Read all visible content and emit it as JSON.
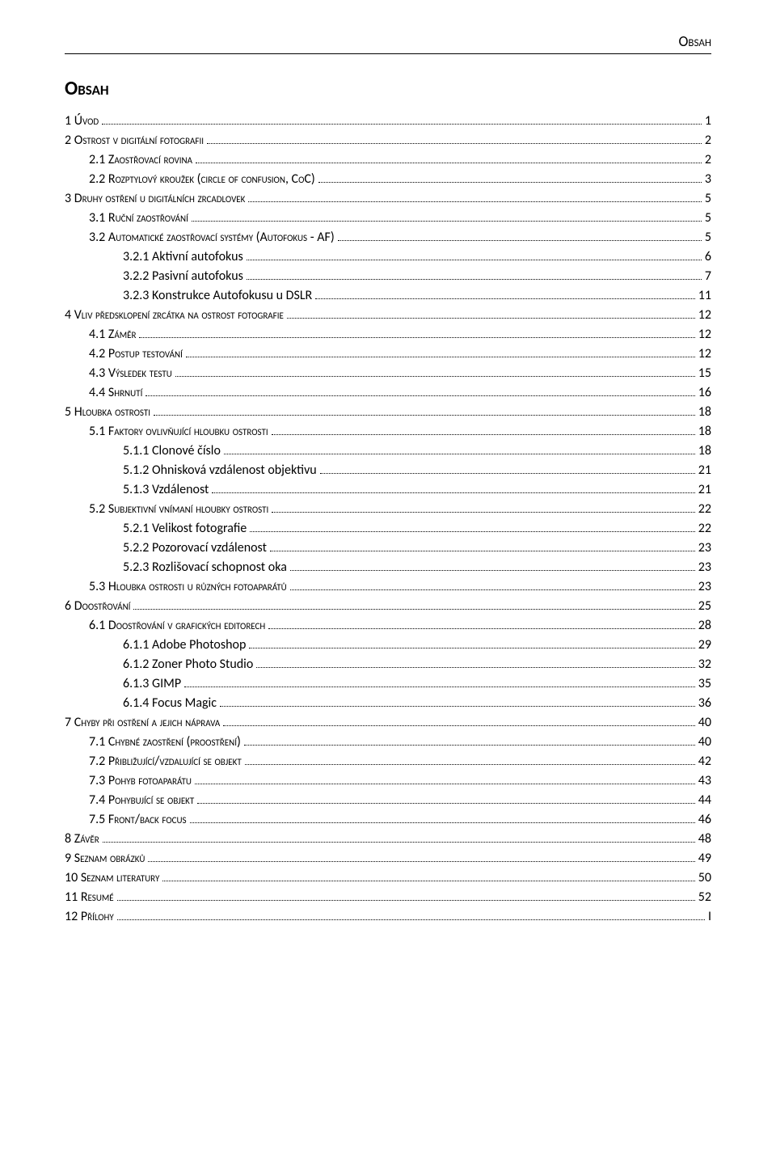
{
  "header": "Obsah",
  "title": "Obsah",
  "entries": [
    {
      "level": 1,
      "sc": true,
      "label": "1   Úvod",
      "page": "1"
    },
    {
      "level": 1,
      "sc": true,
      "label": "2   Ostrost v digitální fotografii",
      "page": "2"
    },
    {
      "level": 2,
      "sc": true,
      "label": "2.1   Zaostřovací rovina",
      "page": "2"
    },
    {
      "level": 2,
      "sc": true,
      "label": "2.2   Rozptylový kroužek (circle of confusion, CoC)",
      "page": "3"
    },
    {
      "level": 1,
      "sc": true,
      "label": "3   Druhy ostření u digitálních zrcadlovek",
      "page": "5"
    },
    {
      "level": 2,
      "sc": true,
      "label": "3.1   Ruční zaostřování",
      "page": "5"
    },
    {
      "level": 2,
      "sc": true,
      "label": "3.2   Automatické zaostřovací systémy (Autofokus - AF)",
      "page": "5"
    },
    {
      "level": 3,
      "sc": false,
      "label": "3.2.1   Aktivní autofokus",
      "page": "6"
    },
    {
      "level": 3,
      "sc": false,
      "label": "3.2.2   Pasivní autofokus",
      "page": "7"
    },
    {
      "level": 3,
      "sc": false,
      "label": "3.2.3   Konstrukce Autofokusu u DSLR",
      "page": "11"
    },
    {
      "level": 1,
      "sc": true,
      "label": "4   Vliv předsklopení zrcátka na ostrost fotografie",
      "page": "12"
    },
    {
      "level": 2,
      "sc": true,
      "label": "4.1   Záměr",
      "page": "12"
    },
    {
      "level": 2,
      "sc": true,
      "label": "4.2   Postup testování",
      "page": "12"
    },
    {
      "level": 2,
      "sc": true,
      "label": "4.3   Výsledek testu",
      "page": "15"
    },
    {
      "level": 2,
      "sc": true,
      "label": "4.4   Shrnutí",
      "page": "16"
    },
    {
      "level": 1,
      "sc": true,
      "label": "5   Hloubka ostrosti",
      "page": "18"
    },
    {
      "level": 2,
      "sc": true,
      "label": "5.1   Faktory ovlivňující hloubku ostrosti",
      "page": "18"
    },
    {
      "level": 3,
      "sc": false,
      "label": "5.1.1   Clonové číslo",
      "page": "18"
    },
    {
      "level": 3,
      "sc": false,
      "label": "5.1.2   Ohnisková vzdálenost objektivu",
      "page": "21"
    },
    {
      "level": 3,
      "sc": false,
      "label": "5.1.3   Vzdálenost",
      "page": "21"
    },
    {
      "level": 2,
      "sc": true,
      "label": "5.2   Subjektivní vnímaní hloubky ostrosti",
      "page": "22"
    },
    {
      "level": 3,
      "sc": false,
      "label": "5.2.1   Velikost fotografie",
      "page": "22"
    },
    {
      "level": 3,
      "sc": false,
      "label": "5.2.2   Pozorovací vzdálenost",
      "page": "23"
    },
    {
      "level": 3,
      "sc": false,
      "label": "5.2.3   Rozlišovací schopnost oka",
      "page": "23"
    },
    {
      "level": 2,
      "sc": true,
      "label": "5.3   Hloubka ostrosti u různých fotoaparátů",
      "page": "23"
    },
    {
      "level": 1,
      "sc": true,
      "label": "6   Doostřování",
      "page": "25"
    },
    {
      "level": 2,
      "sc": true,
      "label": "6.1   Doostřování v grafických editorech",
      "page": "28"
    },
    {
      "level": 3,
      "sc": false,
      "label": "6.1.1   Adobe Photoshop",
      "page": "29"
    },
    {
      "level": 3,
      "sc": false,
      "label": "6.1.2   Zoner Photo Studio",
      "page": "32"
    },
    {
      "level": 3,
      "sc": false,
      "label": "6.1.3   GIMP",
      "page": "35"
    },
    {
      "level": 3,
      "sc": false,
      "label": "6.1.4   Focus Magic",
      "page": "36"
    },
    {
      "level": 1,
      "sc": true,
      "label": "7   Chyby při ostření a jejich náprava",
      "page": "40"
    },
    {
      "level": 2,
      "sc": true,
      "label": "7.1   Chybné zaostření (proostření)",
      "page": "40"
    },
    {
      "level": 2,
      "sc": true,
      "label": "7.2   Přibližující/vzdalující se objekt",
      "page": "42"
    },
    {
      "level": 2,
      "sc": true,
      "label": "7.3   Pohyb fotoaparátu",
      "page": "43"
    },
    {
      "level": 2,
      "sc": true,
      "label": "7.4   Pohybující se objekt",
      "page": "44"
    },
    {
      "level": 2,
      "sc": true,
      "label": "7.5   Front/back focus",
      "page": "46"
    },
    {
      "level": 1,
      "sc": true,
      "label": "8   Závěr",
      "page": "48"
    },
    {
      "level": 1,
      "sc": true,
      "label": "9   Seznam obrázků",
      "page": "49"
    },
    {
      "level": 1,
      "sc": true,
      "label": "10 Seznam literatury",
      "page": "50"
    },
    {
      "level": 1,
      "sc": true,
      "label": "11 Resumé",
      "page": "52"
    },
    {
      "level": 1,
      "sc": true,
      "label": "12 Přílohy",
      "page": "I"
    }
  ]
}
